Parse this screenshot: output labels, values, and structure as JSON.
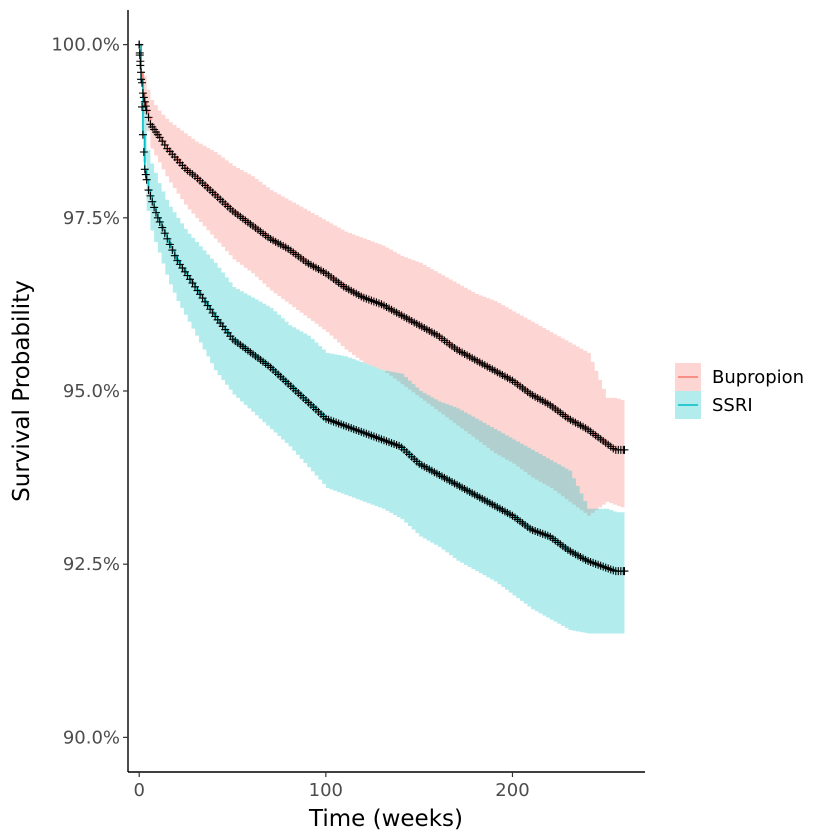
{
  "chart_data": {
    "type": "line",
    "subtype": "kaplan-meier survival curves with confidence bands and censor marks",
    "title": "",
    "xlabel": "Time (weeks)",
    "ylabel": "Survival Probability",
    "xlim": [
      -6,
      271
    ],
    "ylim": [
      89.5,
      100.5
    ],
    "x_ticks": [
      0,
      100,
      200
    ],
    "x_tick_labels": [
      "0",
      "100",
      "200"
    ],
    "y_ticks": [
      90.0,
      92.5,
      95.0,
      97.5,
      100.0
    ],
    "y_tick_labels": [
      "90.0%",
      "92.5%",
      "95.0%",
      "97.5%",
      "100.0%"
    ],
    "grid": false,
    "legend_position": "right",
    "censor_mark": "+",
    "censor_color": "#000000",
    "series": [
      {
        "name": "Bupropion",
        "color": "#F8766D",
        "band_color": "#F8766D",
        "x": [
          0,
          1,
          2,
          4,
          6,
          10,
          15,
          20,
          25,
          30,
          40,
          50,
          60,
          70,
          80,
          90,
          100,
          110,
          120,
          130,
          140,
          150,
          160,
          170,
          180,
          190,
          200,
          210,
          220,
          230,
          240,
          250,
          255,
          260
        ],
        "y": [
          100.0,
          99.6,
          99.3,
          99.05,
          98.85,
          98.7,
          98.5,
          98.35,
          98.2,
          98.1,
          97.85,
          97.6,
          97.4,
          97.2,
          97.05,
          96.85,
          96.7,
          96.5,
          96.35,
          96.25,
          96.1,
          95.95,
          95.8,
          95.6,
          95.45,
          95.3,
          95.15,
          94.95,
          94.8,
          94.6,
          94.45,
          94.25,
          94.15,
          94.15
        ],
        "ci_lower": [
          100.0,
          99.35,
          99.0,
          98.75,
          98.5,
          98.3,
          98.05,
          97.85,
          97.65,
          97.5,
          97.2,
          96.9,
          96.7,
          96.45,
          96.25,
          96.05,
          95.85,
          95.6,
          95.4,
          95.3,
          95.1,
          94.9,
          94.7,
          94.5,
          94.3,
          94.1,
          93.95,
          93.75,
          93.6,
          93.4,
          93.2,
          93.4,
          93.35,
          93.3
        ],
        "ci_upper": [
          100.0,
          99.8,
          99.55,
          99.35,
          99.2,
          99.05,
          98.9,
          98.8,
          98.7,
          98.6,
          98.45,
          98.25,
          98.1,
          97.9,
          97.75,
          97.6,
          97.45,
          97.3,
          97.2,
          97.1,
          96.95,
          96.85,
          96.7,
          96.55,
          96.4,
          96.3,
          96.15,
          96.0,
          95.85,
          95.7,
          95.55,
          94.9,
          94.9,
          94.85
        ]
      },
      {
        "name": "SSRI",
        "color": "#00BFC4",
        "band_color": "#00BFC4",
        "x": [
          0,
          1,
          2,
          3,
          5,
          8,
          10,
          15,
          20,
          25,
          30,
          40,
          50,
          60,
          70,
          80,
          90,
          100,
          110,
          120,
          130,
          140,
          150,
          160,
          170,
          180,
          190,
          200,
          210,
          220,
          230,
          240,
          250,
          255,
          260
        ],
        "y": [
          100.0,
          99.5,
          98.7,
          98.2,
          97.9,
          97.65,
          97.5,
          97.2,
          96.9,
          96.7,
          96.5,
          96.1,
          95.75,
          95.55,
          95.35,
          95.1,
          94.85,
          94.6,
          94.5,
          94.4,
          94.3,
          94.2,
          93.95,
          93.8,
          93.65,
          93.5,
          93.35,
          93.2,
          93.0,
          92.9,
          92.7,
          92.55,
          92.45,
          92.4,
          92.4
        ],
        "ci_lower": [
          100.0,
          99.2,
          98.3,
          97.8,
          97.4,
          97.15,
          97.0,
          96.6,
          96.3,
          96.05,
          95.8,
          95.3,
          94.95,
          94.7,
          94.45,
          94.2,
          93.9,
          93.6,
          93.5,
          93.4,
          93.3,
          93.15,
          92.9,
          92.75,
          92.55,
          92.4,
          92.25,
          92.05,
          91.85,
          91.7,
          91.55,
          91.5,
          91.5,
          91.5,
          91.5
        ],
        "ci_upper": [
          100.0,
          99.75,
          99.1,
          98.6,
          98.35,
          98.15,
          98.0,
          97.7,
          97.5,
          97.3,
          97.15,
          96.85,
          96.5,
          96.35,
          96.2,
          95.95,
          95.8,
          95.55,
          95.5,
          95.4,
          95.3,
          95.25,
          95.0,
          94.85,
          94.75,
          94.6,
          94.45,
          94.3,
          94.15,
          94.0,
          93.85,
          93.3,
          93.3,
          93.25,
          93.25
        ]
      }
    ]
  }
}
